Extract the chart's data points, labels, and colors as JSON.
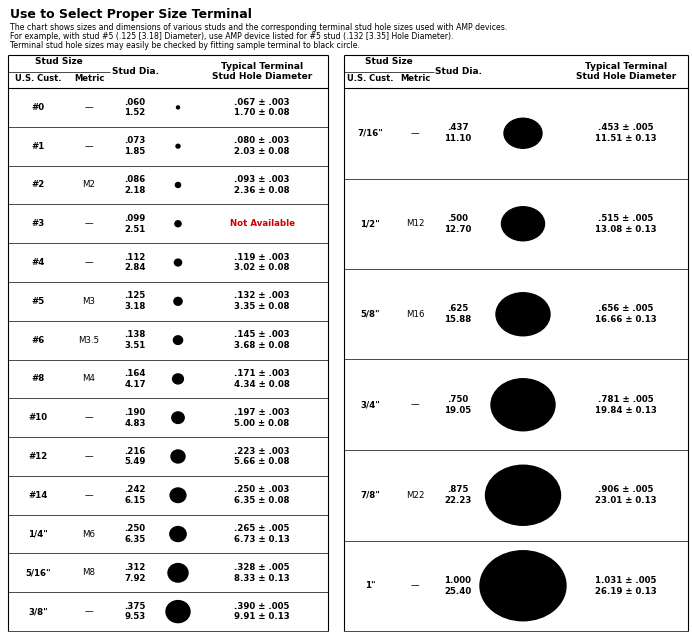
{
  "title": "Use to Select Proper Size Terminal",
  "description": [
    "The chart shows sizes and dimensions of various studs and the corresponding terminal stud hole sizes used with AMP devices.",
    "For example, with stud #5 (.125 [3.18] Diameter), use AMP device listed for #5 stud (.132 [3.35] Hole Diameter).",
    "Terminal stud hole sizes may easily be checked by fitting sample terminal to black circle."
  ],
  "left_table": {
    "rows": [
      {
        "us": "#0",
        "metric": "—",
        "stud": ".060\n1.52",
        "hole": ".067 ± .003\n1.70 ± 0.08",
        "cw": 0.03,
        "ch": 0.03
      },
      {
        "us": "#1",
        "metric": "—",
        "stud": ".073\n1.85",
        "hole": ".080 ± .003\n2.03 ± 0.08",
        "cw": 0.04,
        "ch": 0.038
      },
      {
        "us": "#2",
        "metric": "M2",
        "stud": ".086\n2.18",
        "hole": ".093 ± .003\n2.36 ± 0.08",
        "cw": 0.052,
        "ch": 0.05
      },
      {
        "us": "#3",
        "metric": "—",
        "stud": ".099\n2.51",
        "hole": "Not Available",
        "cw": 0.062,
        "ch": 0.06
      },
      {
        "us": "#4",
        "metric": "—",
        "stud": ".112\n2.84",
        "hole": ".119 ± .003\n3.02 ± 0.08",
        "cw": 0.072,
        "ch": 0.068
      },
      {
        "us": "#5",
        "metric": "M3",
        "stud": ".125\n3.18",
        "hole": ".132 ± .003\n3.35 ± 0.08",
        "cw": 0.082,
        "ch": 0.078
      },
      {
        "us": "#6",
        "metric": "M3.5",
        "stud": ".138\n3.51",
        "hole": ".145 ± .003\n3.68 ± 0.08",
        "cw": 0.092,
        "ch": 0.086
      },
      {
        "us": "#8",
        "metric": "M4",
        "stud": ".164\n4.17",
        "hole": ".171 ± .003\n4.34 ± 0.08",
        "cw": 0.108,
        "ch": 0.1
      },
      {
        "us": "#10",
        "metric": "—",
        "stud": ".190\n4.83",
        "hole": ".197 ± .003\n5.00 ± 0.08",
        "cw": 0.124,
        "ch": 0.115
      },
      {
        "us": "#12",
        "metric": "—",
        "stud": ".216\n5.49",
        "hole": ".223 ± .003\n5.66 ± 0.08",
        "cw": 0.14,
        "ch": 0.13
      },
      {
        "us": "#14",
        "metric": "—",
        "stud": ".242\n6.15",
        "hole": ".250 ± .003\n6.35 ± 0.08",
        "cw": 0.158,
        "ch": 0.145
      },
      {
        "us": "1/4\"",
        "metric": "M6",
        "stud": ".250\n6.35",
        "hole": ".265 ± .005\n6.73 ± 0.13",
        "cw": 0.163,
        "ch": 0.15
      },
      {
        "us": "5/16\"",
        "metric": "M8",
        "stud": ".312\n7.92",
        "hole": ".328 ± .005\n8.33 ± 0.13",
        "cw": 0.2,
        "ch": 0.185
      },
      {
        "us": "3/8\"",
        "metric": "—",
        "stud": ".375\n9.53",
        "hole": ".390 ± .005\n9.91 ± 0.13",
        "cw": 0.24,
        "ch": 0.22
      }
    ]
  },
  "right_table": {
    "rows": [
      {
        "us": "7/16\"",
        "metric": "—",
        "stud": ".437\n11.10",
        "hole": ".453 ± .005\n11.51 ± 0.13",
        "cw": 0.38,
        "ch": 0.3
      },
      {
        "us": "1/2\"",
        "metric": "M12",
        "stud": ".500\n12.70",
        "hole": ".515 ± .005\n13.08 ± 0.13",
        "cw": 0.43,
        "ch": 0.34
      },
      {
        "us": "5/8\"",
        "metric": "M16",
        "stud": ".625\n15.88",
        "hole": ".656 ± .005\n16.66 ± 0.13",
        "cw": 0.54,
        "ch": 0.43
      },
      {
        "us": "3/4\"",
        "metric": "—",
        "stud": ".750\n19.05",
        "hole": ".781 ± .005\n19.84 ± 0.13",
        "cw": 0.64,
        "ch": 0.52
      },
      {
        "us": "7/8\"",
        "metric": "M22",
        "stud": ".875\n22.23",
        "hole": ".906 ± .005\n23.01 ± 0.13",
        "cw": 0.75,
        "ch": 0.6
      },
      {
        "us": "1\"",
        "metric": "—",
        "stud": "1.000\n25.40",
        "hole": "1.031 ± .005\n26.19 ± 0.13",
        "cw": 0.86,
        "ch": 0.7
      }
    ]
  },
  "colors": {
    "background": "#ffffff",
    "text": "#000000",
    "circle": "#000000",
    "not_available": "#cc0000",
    "bold_text": "#000000"
  },
  "title_fs": 9.0,
  "desc_fs": 5.6,
  "hdr_fs": 6.5,
  "cell_fs": 6.2
}
